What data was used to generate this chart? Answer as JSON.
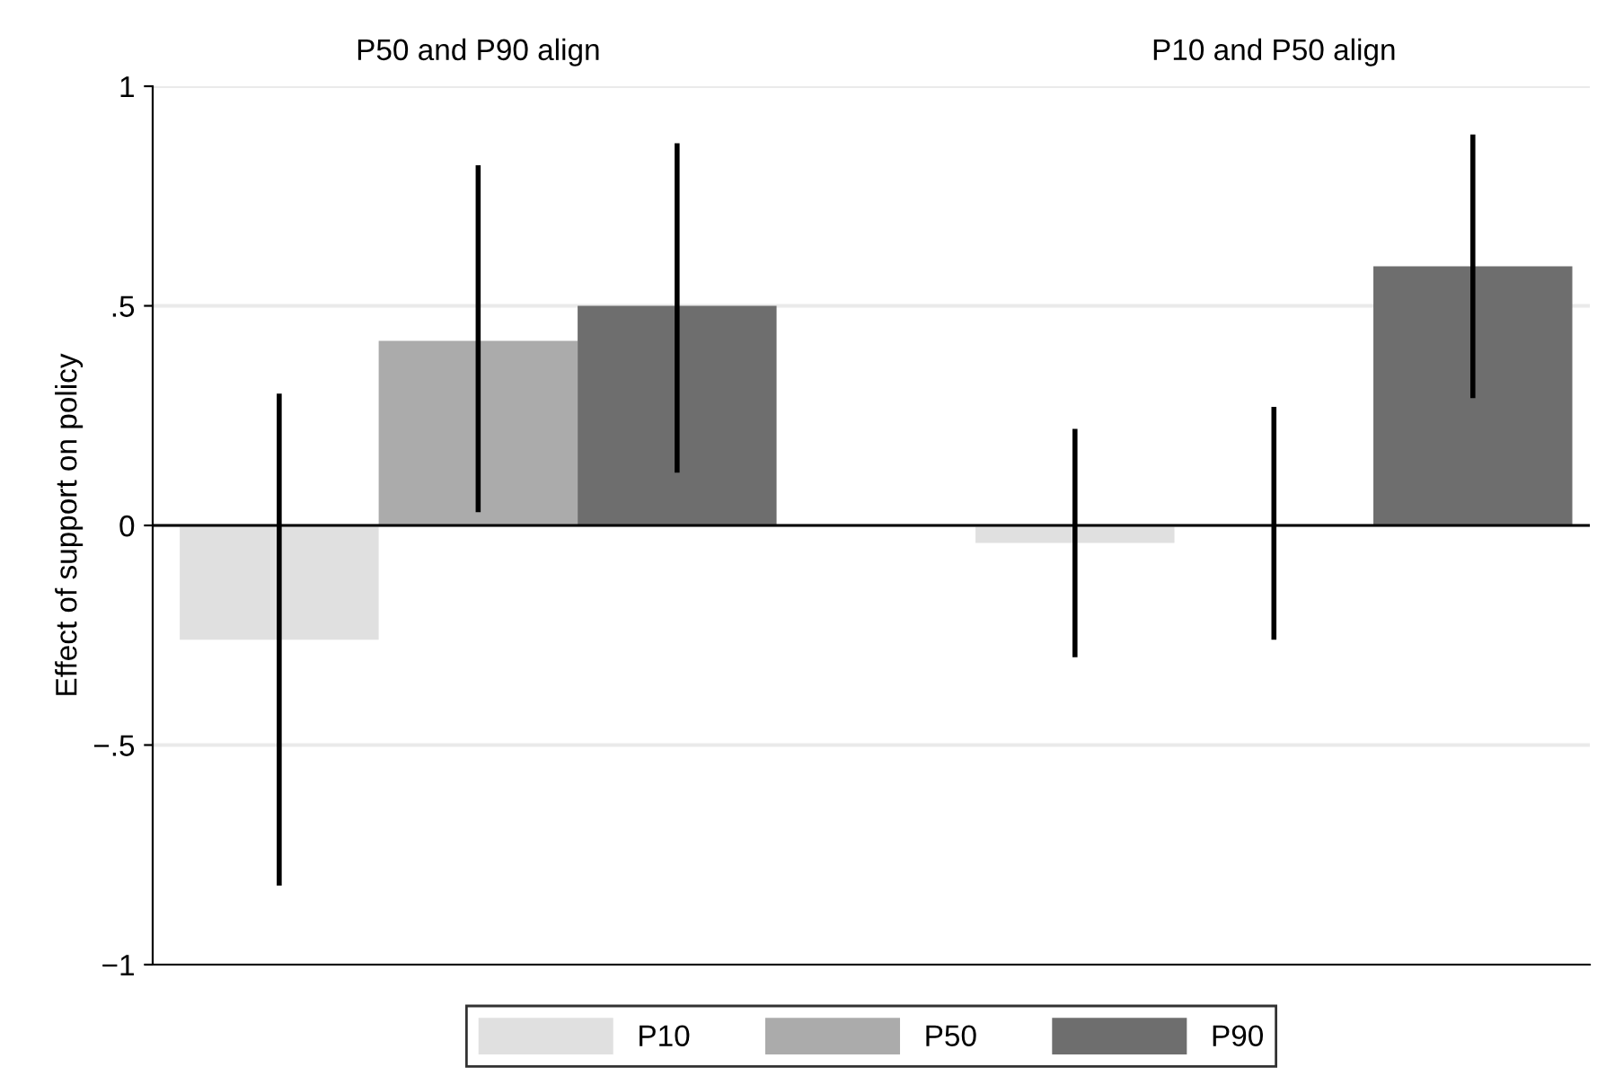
{
  "chart_data": {
    "type": "bar",
    "ylabel": "Effect of support on policy",
    "categories": [
      "P50 and P90 align",
      "P10 and P50 align"
    ],
    "series": [
      {
        "name": "P10",
        "color": "#e0e0e0",
        "values": [
          -0.26,
          -0.04
        ],
        "errors": [
          [
            -0.82,
            0.3
          ],
          [
            -0.3,
            0.22
          ]
        ]
      },
      {
        "name": "P50",
        "color": "#ababab",
        "values": [
          0.42,
          0.0
        ],
        "errors": [
          [
            0.03,
            0.82
          ],
          [
            -0.26,
            0.27
          ]
        ]
      },
      {
        "name": "P90",
        "color": "#6e6e6e",
        "values": [
          0.5,
          0.59
        ],
        "errors": [
          [
            0.12,
            0.87
          ],
          [
            0.29,
            0.89
          ]
        ]
      }
    ],
    "ylim": [
      -1,
      1
    ],
    "yticks": [
      {
        "value": -1,
        "label": "−1"
      },
      {
        "value": -0.5,
        "label": "−.5"
      },
      {
        "value": 0,
        "label": "0"
      },
      {
        "value": 0.5,
        "label": ".5"
      },
      {
        "value": 1,
        "label": "1"
      }
    ],
    "ref_lines": [
      {
        "axis": "y",
        "value": 0,
        "color": "#000000"
      }
    ],
    "grid": "y",
    "legend": "bottom"
  }
}
